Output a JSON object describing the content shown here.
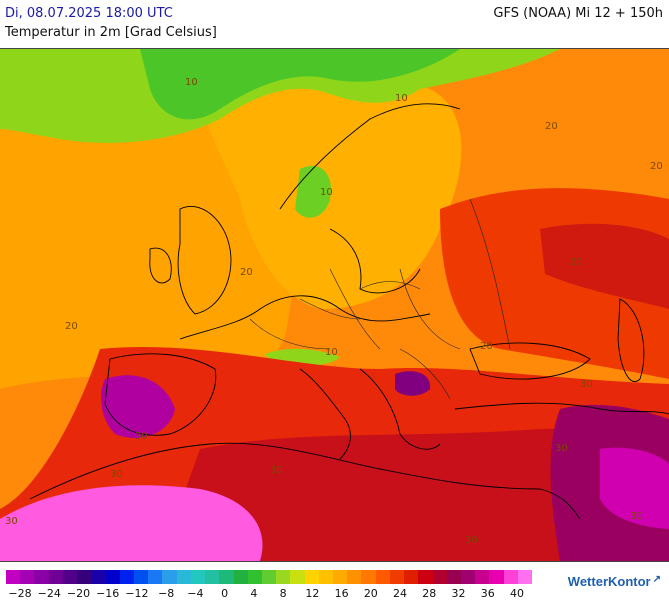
{
  "header": {
    "datetime": "Di, 08.07.2025 18:00 UTC",
    "model": "GFS (NOAA) Mi 12 + 150h",
    "variable": "Temperatur in 2m [Grad Celsius]"
  },
  "map": {
    "region": "Europa",
    "contour_labels": [
      "10",
      "10",
      "10",
      "10",
      "20",
      "20",
      "20",
      "20",
      "20",
      "20",
      "30",
      "30",
      "30",
      "30",
      "30",
      "30",
      "30",
      "30"
    ]
  },
  "legend": {
    "colors": [
      "#c200c2",
      "#a600b4",
      "#8a00a6",
      "#6e0098",
      "#52008a",
      "#36007c",
      "#1a00a8",
      "#0000cc",
      "#0022ee",
      "#0050f0",
      "#1a78f5",
      "#2a9ee8",
      "#2ab8d8",
      "#22c8c0",
      "#22c0a0",
      "#1eb878",
      "#22b040",
      "#30c030",
      "#60cc30",
      "#98d820",
      "#c8e010",
      "#ffd200",
      "#ffc000",
      "#ffaa00",
      "#ff9000",
      "#ff7800",
      "#ff5a00",
      "#f03c00",
      "#e01e00",
      "#cc0010",
      "#b00030",
      "#980050",
      "#a00070",
      "#c80090",
      "#e800b0",
      "#ff40d8",
      "#ff70f0"
    ],
    "ticks": [
      "−28",
      "−24",
      "−20",
      "−16",
      "−12",
      "−8",
      "−4",
      "0",
      "4",
      "8",
      "12",
      "16",
      "20",
      "24",
      "28",
      "32",
      "36",
      "40"
    ]
  },
  "brand": {
    "name": "WetterKontor",
    "mark": "↗"
  }
}
